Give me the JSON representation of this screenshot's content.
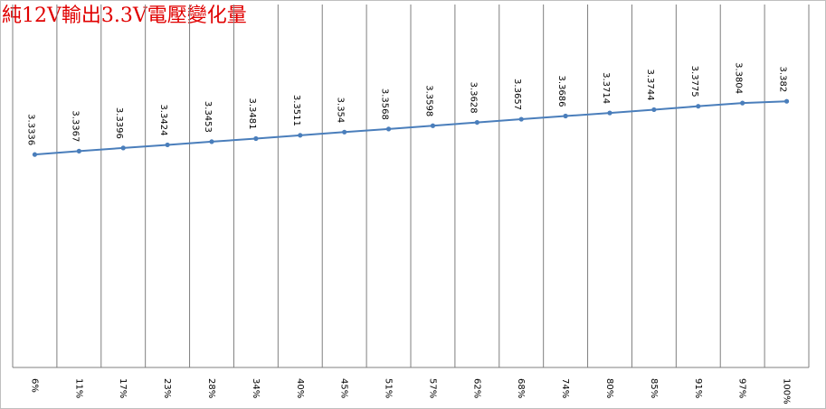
{
  "chart_data": {
    "type": "line",
    "title": "純12V輸出3.3V電壓變化量",
    "categories": [
      "6%",
      "11%",
      "17%",
      "23%",
      "28%",
      "34%",
      "40%",
      "45%",
      "51%",
      "57%",
      "62%",
      "68%",
      "74%",
      "80%",
      "85%",
      "91%",
      "97%",
      "100%"
    ],
    "values": [
      3.3336,
      3.3367,
      3.3396,
      3.3424,
      3.3453,
      3.3481,
      3.3511,
      3.354,
      3.3568,
      3.3598,
      3.3628,
      3.3657,
      3.3686,
      3.3714,
      3.3744,
      3.3775,
      3.3804,
      3.382
    ],
    "color": "#4a7ebb",
    "ylim": [
      3.14,
      3.47
    ],
    "grid": true
  }
}
